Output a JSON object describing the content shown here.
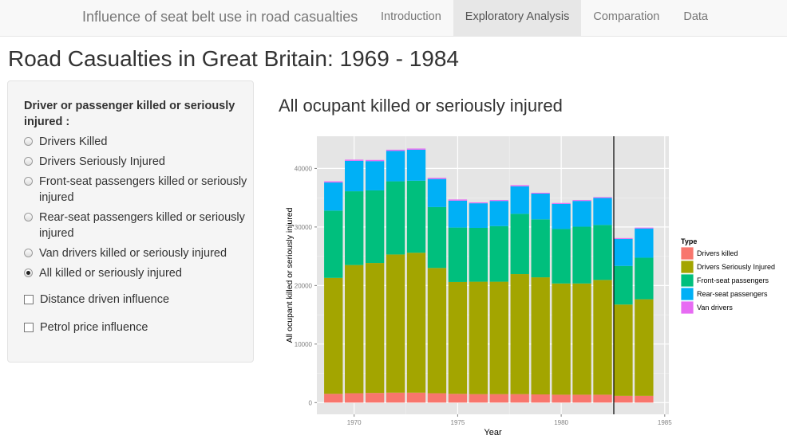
{
  "navbar": {
    "brand": "Influence of seat belt use in road casualties",
    "items": [
      "Introduction",
      "Exploratory Analysis",
      "Comparation",
      "Data"
    ],
    "active": "Exploratory Analysis"
  },
  "page_title": "Road Casualties in Great Britain: 1969 - 1984",
  "sidebar": {
    "label": "Driver or passenger killed or seriously injured :",
    "radios": [
      {
        "label": "Drivers Killed",
        "checked": false
      },
      {
        "label": "Drivers Seriously Injured",
        "checked": false
      },
      {
        "label": "Front-seat passengers killed or seriously injured",
        "checked": false
      },
      {
        "label": "Rear-seat passengers killed or seriously injured",
        "checked": false
      },
      {
        "label": "Van drivers killed or seriously injured",
        "checked": false
      },
      {
        "label": "All killed or seriously injured",
        "checked": true
      }
    ],
    "checkboxes": [
      {
        "label": "Distance driven influence",
        "checked": false
      },
      {
        "label": "Petrol price influence",
        "checked": false
      }
    ]
  },
  "chart_title": "All ocupant killed or seriously injured",
  "colors": {
    "Drivers killed": "#f8766d",
    "Drivers Seriously Injured": "#a3a500",
    "Front-seat passengers": "#00bf7d",
    "Rear-seat passengers": "#00b0f6",
    "Van drivers": "#e76bf3"
  },
  "chart_data": {
    "type": "bar",
    "stacked": true,
    "x": [
      1969,
      1970,
      1971,
      1972,
      1973,
      1974,
      1975,
      1976,
      1977,
      1978,
      1979,
      1980,
      1981,
      1982,
      1983,
      1984
    ],
    "series": [
      {
        "name": "Drivers killed",
        "values": [
          1500,
          1600,
          1650,
          1700,
          1700,
          1600,
          1500,
          1450,
          1450,
          1450,
          1400,
          1350,
          1350,
          1350,
          1150,
          1150
        ]
      },
      {
        "name": "Drivers Seriously Injured",
        "values": [
          19800,
          21900,
          22200,
          23600,
          23900,
          21400,
          19100,
          19200,
          19200,
          20500,
          20000,
          19000,
          19000,
          19600,
          15600,
          16500
        ]
      },
      {
        "name": "Front-seat passengers",
        "values": [
          11500,
          12600,
          12400,
          12500,
          12300,
          10400,
          9300,
          9200,
          9500,
          10300,
          9900,
          9300,
          9700,
          9400,
          6600,
          7100
        ]
      },
      {
        "name": "Rear-seat passengers",
        "values": [
          4800,
          5200,
          5000,
          5200,
          5300,
          4800,
          4600,
          4200,
          4300,
          4700,
          4400,
          4300,
          4400,
          4600,
          4600,
          5000
        ]
      },
      {
        "name": "Van drivers",
        "values": [
          200,
          200,
          200,
          200,
          200,
          200,
          200,
          150,
          150,
          200,
          150,
          150,
          150,
          150,
          150,
          150
        ]
      }
    ],
    "xlabel": "Year",
    "ylabel": "All ocupant killed or seriously injured",
    "xlim": [
      1968.2,
      1985.2
    ],
    "ylim": [
      -2000,
      45500
    ],
    "xticks": [
      1970,
      1975,
      1980,
      1985
    ],
    "yticks": [
      0,
      10000,
      20000,
      30000,
      40000
    ],
    "vline": 1982.54,
    "legend_title": "Type",
    "legend_position": "right",
    "grid": true
  }
}
